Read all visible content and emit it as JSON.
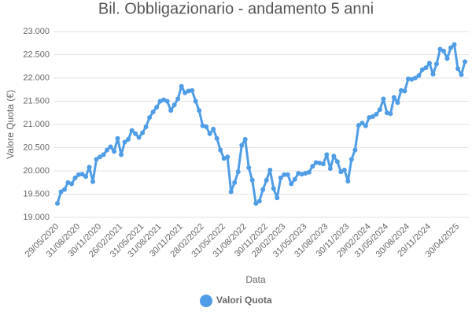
{
  "chart_data": {
    "type": "line",
    "title": "Bil. Obbligazionario - andamento 5 anni",
    "x_label": "Data",
    "y_label": "Valore Quota (€)",
    "categories": [
      "29/05/2020",
      null,
      null,
      null,
      null,
      null,
      "31/08/2020",
      null,
      null,
      null,
      null,
      null,
      "30/11/2020",
      null,
      null,
      null,
      null,
      null,
      "26/02/2021",
      null,
      null,
      null,
      null,
      null,
      "31/05/2021",
      null,
      null,
      null,
      null,
      "31/08/2021",
      null,
      null,
      null,
      null,
      null,
      "30/11/2021",
      null,
      null,
      null,
      null,
      null,
      "28/02/2022",
      null,
      null,
      null,
      null,
      null,
      "31/05/2022",
      null,
      null,
      null,
      null,
      null,
      "31/08/2022",
      null,
      null,
      null,
      null,
      null,
      "30/11/2022",
      null,
      null,
      null,
      null,
      "28/02/2023",
      null,
      null,
      null,
      null,
      null,
      "31/05/2023",
      null,
      null,
      null,
      null,
      null,
      "31/08/2023",
      null,
      null,
      null,
      null,
      null,
      "30/11/2023",
      null,
      null,
      null,
      null,
      null,
      "29/02/2024",
      null,
      null,
      null,
      null,
      "31/05/2024",
      null,
      null,
      null,
      null,
      null,
      "30/08/2024",
      null,
      null,
      null,
      null,
      null,
      "29/11/2024",
      null,
      null,
      null,
      null,
      null,
      null,
      null,
      "30/04/2025",
      null,
      null
    ],
    "series": [
      {
        "name": "Valori Quota",
        "color": "#4f9de6",
        "values": [
          19.3,
          19.55,
          19.6,
          19.75,
          19.72,
          19.85,
          19.92,
          19.93,
          19.88,
          20.08,
          19.77,
          20.25,
          20.3,
          20.35,
          20.45,
          20.52,
          20.42,
          20.7,
          20.35,
          20.62,
          20.68,
          20.87,
          20.8,
          20.72,
          20.82,
          20.95,
          21.15,
          21.27,
          21.37,
          21.5,
          21.53,
          21.5,
          21.3,
          21.42,
          21.55,
          21.82,
          21.68,
          21.72,
          21.73,
          21.5,
          21.3,
          20.97,
          20.95,
          20.8,
          20.9,
          20.7,
          20.45,
          20.27,
          20.3,
          19.55,
          19.75,
          19.98,
          20.55,
          20.68,
          20.07,
          19.8,
          19.3,
          19.35,
          19.6,
          19.8,
          20.02,
          19.62,
          19.42,
          19.85,
          19.92,
          19.92,
          19.72,
          19.82,
          19.95,
          19.93,
          19.95,
          19.97,
          20.1,
          20.18,
          20.17,
          20.15,
          20.35,
          20.05,
          20.32,
          20.2,
          19.98,
          20.02,
          19.78,
          20.25,
          20.45,
          20.98,
          21.03,
          20.97,
          21.15,
          21.17,
          21.22,
          21.32,
          21.55,
          21.25,
          21.23,
          21.58,
          21.47,
          21.73,
          21.72,
          21.98,
          21.97,
          22.0,
          22.05,
          22.18,
          22.22,
          22.32,
          22.08,
          22.3,
          22.62,
          22.58,
          22.42,
          22.65,
          22.72,
          22.2,
          22.07,
          22.35
        ]
      }
    ],
    "ylim": [
      19.0,
      23.0
    ],
    "yticks": [
      {
        "value": 19.0,
        "label": "19.000"
      },
      {
        "value": 19.5,
        "label": "19.500"
      },
      {
        "value": 20.0,
        "label": "20.000"
      },
      {
        "value": 20.5,
        "label": "20.500"
      },
      {
        "value": 21.0,
        "label": "21.000"
      },
      {
        "value": 21.5,
        "label": "21.500"
      },
      {
        "value": 22.0,
        "label": "22.000"
      },
      {
        "value": 22.5,
        "label": "22.500"
      },
      {
        "value": 23.0,
        "label": "23.000"
      }
    ],
    "grid": true,
    "legend": "bottom"
  }
}
